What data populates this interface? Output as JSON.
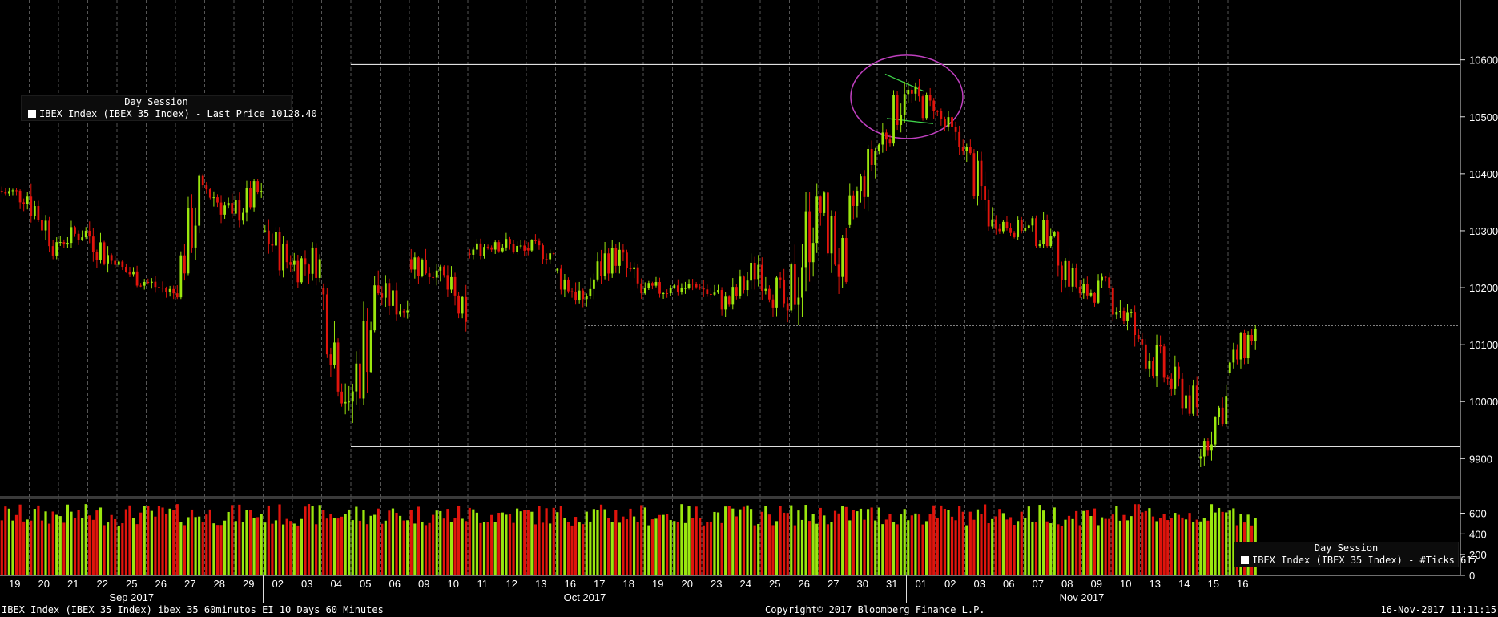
{
  "chart_data": {
    "type": "candlestick",
    "price_legend": {
      "session": "Day Session",
      "series": "IBEX Index (IBEX 35 Index) - Last Price 10128.40"
    },
    "volume_legend": {
      "session": "Day Session",
      "series": "IBEX Index (IBEX 35 Index) - #Ticks 617"
    },
    "price_axis": {
      "ticks": [
        9900,
        10000,
        10100,
        10200,
        10300,
        10400,
        10500,
        10600
      ],
      "range": [
        9840,
        10705
      ]
    },
    "volume_axis": {
      "ticks": [
        0,
        200,
        400,
        600
      ],
      "range": [
        0,
        720
      ]
    },
    "day_labels": [
      "19",
      "20",
      "21",
      "22",
      "25",
      "26",
      "27",
      "28",
      "29",
      "02",
      "03",
      "04",
      "05",
      "06",
      "09",
      "10",
      "11",
      "12",
      "13",
      "16",
      "17",
      "18",
      "19",
      "20",
      "23",
      "24",
      "25",
      "26",
      "27",
      "30",
      "31",
      "01",
      "02",
      "03",
      "06",
      "07",
      "08",
      "09",
      "10",
      "13",
      "14",
      "15",
      "16"
    ],
    "month_labels": [
      {
        "label": "Sep 2017",
        "start": 0,
        "end": 9
      },
      {
        "label": "Oct 2017",
        "start": 9,
        "end": 31
      },
      {
        "label": "Nov 2017",
        "start": 31,
        "end": 43
      }
    ],
    "reference_lines": [
      {
        "value": 10592,
        "style": "solid",
        "from_day": 12
      },
      {
        "value": 9921,
        "style": "solid",
        "from_day": 12
      },
      {
        "value": 10134,
        "style": "dotted",
        "from_day": 20
      }
    ],
    "daily_path": [
      {
        "day": "19",
        "o": 10370,
        "h": 10400,
        "l": 10330,
        "c": 10360
      },
      {
        "day": "20",
        "o": 10360,
        "h": 10385,
        "l": 10250,
        "c": 10280
      },
      {
        "day": "21",
        "o": 10280,
        "h": 10340,
        "l": 10270,
        "c": 10300
      },
      {
        "day": "22",
        "o": 10300,
        "h": 10320,
        "l": 10210,
        "c": 10240
      },
      {
        "day": "25",
        "o": 10240,
        "h": 10250,
        "l": 10190,
        "c": 10210
      },
      {
        "day": "26",
        "o": 10210,
        "h": 10230,
        "l": 10170,
        "c": 10190
      },
      {
        "day": "27",
        "o": 10190,
        "h": 10400,
        "l": 10180,
        "c": 10380
      },
      {
        "day": "28",
        "o": 10380,
        "h": 10410,
        "l": 10310,
        "c": 10330
      },
      {
        "day": "29",
        "o": 10330,
        "h": 10390,
        "l": 10280,
        "c": 10370
      },
      {
        "day": "02",
        "o": 10300,
        "h": 10330,
        "l": 10200,
        "c": 10240
      },
      {
        "day": "03",
        "o": 10240,
        "h": 10280,
        "l": 10160,
        "c": 10250
      },
      {
        "day": "04",
        "o": 10200,
        "h": 10210,
        "l": 9960,
        "c": 10000
      },
      {
        "day": "05",
        "o": 10000,
        "h": 10230,
        "l": 9925,
        "c": 10190
      },
      {
        "day": "06",
        "o": 10190,
        "h": 10230,
        "l": 10130,
        "c": 10160
      },
      {
        "day": "09",
        "o": 10250,
        "h": 10300,
        "l": 10190,
        "c": 10230
      },
      {
        "day": "10",
        "o": 10230,
        "h": 10240,
        "l": 10110,
        "c": 10140
      },
      {
        "day": "11",
        "o": 10260,
        "h": 10305,
        "l": 10250,
        "c": 10280
      },
      {
        "day": "12",
        "o": 10280,
        "h": 10310,
        "l": 10250,
        "c": 10265
      },
      {
        "day": "13",
        "o": 10270,
        "h": 10300,
        "l": 10240,
        "c": 10260
      },
      {
        "day": "16",
        "o": 10230,
        "h": 10240,
        "l": 10140,
        "c": 10180
      },
      {
        "day": "17",
        "o": 10180,
        "h": 10290,
        "l": 10160,
        "c": 10270
      },
      {
        "day": "18",
        "o": 10270,
        "h": 10280,
        "l": 10170,
        "c": 10190
      },
      {
        "day": "19",
        "o": 10190,
        "h": 10230,
        "l": 10170,
        "c": 10200
      },
      {
        "day": "20",
        "o": 10200,
        "h": 10230,
        "l": 10170,
        "c": 10200
      },
      {
        "day": "23",
        "o": 10200,
        "h": 10220,
        "l": 10140,
        "c": 10170
      },
      {
        "day": "24",
        "o": 10170,
        "h": 10260,
        "l": 10150,
        "c": 10240
      },
      {
        "day": "25",
        "o": 10240,
        "h": 10260,
        "l": 10130,
        "c": 10160
      },
      {
        "day": "26",
        "o": 10160,
        "h": 10420,
        "l": 10130,
        "c": 10360
      },
      {
        "day": "27",
        "o": 10360,
        "h": 10370,
        "l": 10140,
        "c": 10210
      },
      {
        "day": "30",
        "o": 10310,
        "h": 10460,
        "l": 10300,
        "c": 10440
      },
      {
        "day": "31",
        "o": 10440,
        "h": 10570,
        "l": 10430,
        "c": 10540
      },
      {
        "day": "01",
        "o": 10540,
        "h": 10590,
        "l": 10490,
        "c": 10510
      },
      {
        "day": "02",
        "o": 10510,
        "h": 10515,
        "l": 10420,
        "c": 10440
      },
      {
        "day": "03",
        "o": 10440,
        "h": 10460,
        "l": 10300,
        "c": 10320
      },
      {
        "day": "06",
        "o": 10320,
        "h": 10340,
        "l": 10280,
        "c": 10300
      },
      {
        "day": "07",
        "o": 10300,
        "h": 10370,
        "l": 10270,
        "c": 10290
      },
      {
        "day": "08",
        "o": 10290,
        "h": 10300,
        "l": 10150,
        "c": 10190
      },
      {
        "day": "09",
        "o": 10190,
        "h": 10240,
        "l": 10160,
        "c": 10200
      },
      {
        "day": "10",
        "o": 10200,
        "h": 10220,
        "l": 10070,
        "c": 10110
      },
      {
        "day": "13",
        "o": 10110,
        "h": 10140,
        "l": 9990,
        "c": 10040
      },
      {
        "day": "14",
        "o": 10040,
        "h": 10100,
        "l": 9975,
        "c": 9990
      },
      {
        "day": "15",
        "o": 9900,
        "h": 10030,
        "l": 9885,
        "c": 10010
      },
      {
        "day": "16",
        "o": 10050,
        "h": 10135,
        "l": 10020,
        "c": 10128
      }
    ],
    "colors": {
      "up": "#9be70e",
      "down": "#e0140c",
      "grid": "#555555",
      "background": "#000000"
    }
  },
  "footer": {
    "left": "IBEX Index (IBEX 35 Index) ibex 35 60minutos EI 10 Days 60 Minutes",
    "center": "Copyright© 2017 Bloomberg Finance L.P.",
    "right": "16-Nov-2017 11:11:15"
  }
}
